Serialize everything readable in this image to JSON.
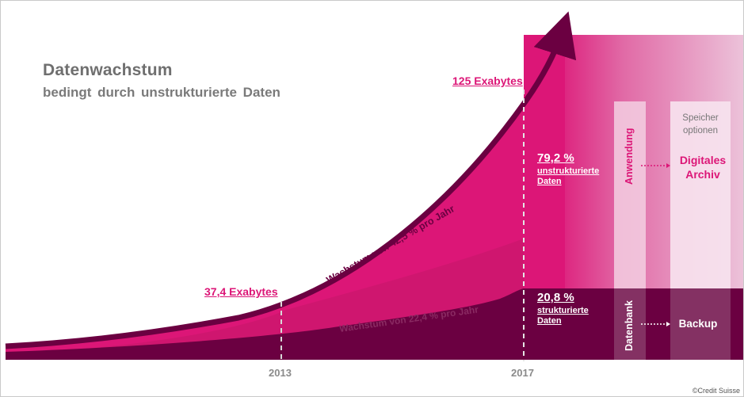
{
  "colors": {
    "magenta": "#dc1677",
    "magenta_dark": "#b3165f",
    "plum": "#6b0041",
    "plum_band": "#7c1b55",
    "gray": "#8a8a8a"
  },
  "chart_data": {
    "type": "area",
    "title": "Datenwachstum",
    "subtitle": "bedingt durch unstrukturierte Daten",
    "x_ticks": [
      "2013",
      "2017"
    ],
    "series": [
      {
        "name": "unstrukturierte Daten",
        "share_2017_pct": 79.2
      },
      {
        "name": "strukturierte Daten",
        "share_2017_pct": 20.8
      }
    ],
    "annotations": {
      "v2013": "37,4 Exabytes",
      "v2017": "125 Exabytes",
      "growth_total": "Wachstum von 42,5 % pro Jahr",
      "growth_structured": "Wachstum von 22,4 % pro Jahr"
    },
    "values": {
      "total_2013_eb": 37.4,
      "total_2017_eb": 125,
      "growth_total_pct": 42.5,
      "growth_structured_pct": 22.4
    },
    "grid": false
  },
  "shares": {
    "unstructured_value": "79,2 %",
    "unstructured_label": "unstrukturierte Daten",
    "structured_value": "20,8 %",
    "structured_label": "strukturierte Daten"
  },
  "panel": {
    "col1_top": "Anwendung",
    "col1_bottom": "Datenbank",
    "col2_header": "Speicher optionen",
    "col2_top": "Digitales Archiv",
    "col2_bottom": "Backup"
  },
  "copyright": "©Credit Suisse"
}
